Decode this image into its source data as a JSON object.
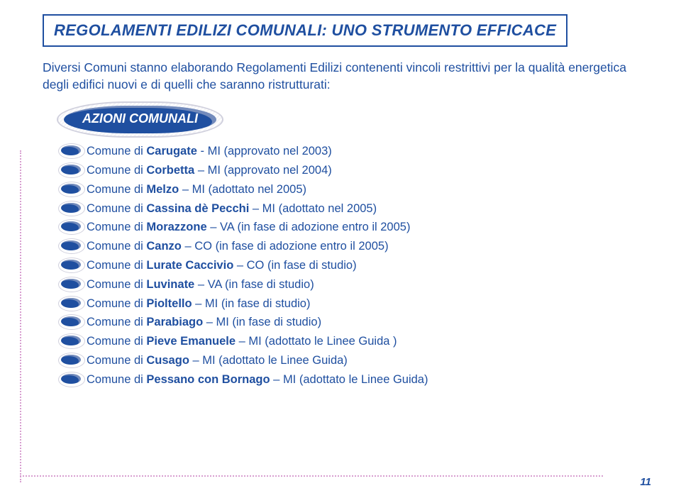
{
  "colors": {
    "primary": "#1f4fa0",
    "dotted": "#d89ed0",
    "background": "#ffffff"
  },
  "title": "REGOLAMENTI EDILIZI COMUNALI: UNO STRUMENTO EFFICACE",
  "intro": "Diversi Comuni stanno elaborando Regolamenti Edilizi contenenti vincoli restrittivi per la qualità energetica degli edifici nuovi e di quelli che saranno ristrutturati:",
  "badge": "AZIONI COMUNALI",
  "items": [
    {
      "pre": "Comune di ",
      "bold": "Carugate",
      "post": " - MI (approvato nel 2003)"
    },
    {
      "pre": "Comune di ",
      "bold": "Corbetta",
      "post": " – MI (approvato nel 2004)"
    },
    {
      "pre": "Comune di ",
      "bold": "Melzo",
      "post": " – MI (adottato nel 2005)"
    },
    {
      "pre": "Comune di ",
      "bold": "Cassina dè Pecchi",
      "post": " – MI (adottato nel 2005)"
    },
    {
      "pre": "Comune di ",
      "bold": "Morazzone",
      "post": " – VA (in fase di adozione entro il 2005)"
    },
    {
      "pre": "Comune di ",
      "bold": "Canzo",
      "post": " – CO (in fase di adozione entro il 2005)"
    },
    {
      "pre": "Comune di ",
      "bold": "Lurate Caccivio",
      "post": " – CO (in fase di studio)"
    },
    {
      "pre": "Comune di ",
      "bold": "Luvinate",
      "post": " – VA (in fase di studio)"
    },
    {
      "pre": "Comune di ",
      "bold": "Pioltello",
      "post": " – MI (in fase di studio)"
    },
    {
      "pre": "Comune di ",
      "bold": "Parabiago",
      "post": " – MI (in fase di studio)"
    },
    {
      "pre": "Comune di ",
      "bold": "Pieve Emanuele",
      "post": " – MI (adottato le Linee Guida )"
    },
    {
      "pre": "Comune di ",
      "bold": "Cusago",
      "post": " – MI (adottato le Linee Guida)"
    },
    {
      "pre": "Comune di ",
      "bold": "Pessano con Bornago",
      "post": " – MI (adottato le Linee Guida)"
    }
  ],
  "page_number": "11"
}
